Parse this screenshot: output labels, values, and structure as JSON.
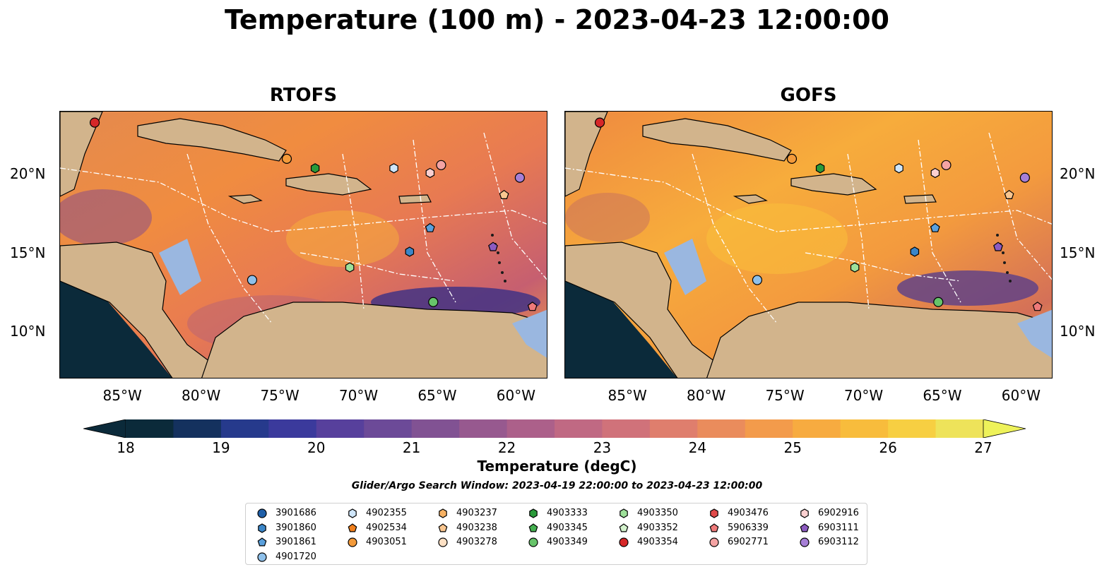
{
  "figure": {
    "title": "Temperature (100 m) - 2023-04-23 12:00:00"
  },
  "panels": [
    {
      "title": "RTOFS"
    },
    {
      "title": "GOFS"
    }
  ],
  "axes": {
    "x_ticks": [
      "85°W",
      "80°W",
      "75°W",
      "70°W",
      "65°W",
      "60°W"
    ],
    "y_ticks": [
      "20°N",
      "15°N",
      "10°N"
    ],
    "lon_range": [
      -89,
      -58
    ],
    "lat_range": [
      7,
      24
    ]
  },
  "colorbar": {
    "label": "Temperature (degC)",
    "ticks": [
      "18",
      "19",
      "20",
      "21",
      "22",
      "23",
      "24",
      "25",
      "26",
      "27"
    ],
    "range": [
      18,
      27
    ],
    "colormap": "thermal",
    "extend": "both"
  },
  "search_window": "Glider/Argo Search Window: 2023-04-19 22:00:00 to 2023-04-23 12:00:00",
  "colors": {
    "land": "#d2b48c",
    "shallow_water": "#9ab7e0",
    "deep_outside": "#0b2a3a",
    "eez_lines": "#ffffff",
    "coastline": "#000000"
  },
  "floats": [
    {
      "id": "3901686",
      "marker": "circle",
      "color": "#1f5fa8",
      "lon": null,
      "lat": null
    },
    {
      "id": "3901860",
      "marker": "hexagon",
      "color": "#3b86c8",
      "lon": -66.8,
      "lat": 15.1
    },
    {
      "id": "3901861",
      "marker": "pentagon",
      "color": "#5aa0dc",
      "lon": -65.5,
      "lat": 16.6
    },
    {
      "id": "4901720",
      "marker": "circle",
      "color": "#8ec0ea",
      "lon": -76.8,
      "lat": 13.3
    },
    {
      "id": "4902355",
      "marker": "hexagon",
      "color": "#cfe6fa",
      "lon": -67.8,
      "lat": 20.4
    },
    {
      "id": "4902534",
      "marker": "pentagon",
      "color": "#f07f1c",
      "lon": null,
      "lat": null
    },
    {
      "id": "4903051",
      "marker": "circle",
      "color": "#f39a3a",
      "lon": -74.6,
      "lat": 21.0
    },
    {
      "id": "4903237",
      "marker": "hexagon",
      "color": "#f7b264",
      "lon": null,
      "lat": null
    },
    {
      "id": "4903238",
      "marker": "pentagon",
      "color": "#f9c690",
      "lon": -60.8,
      "lat": 18.7
    },
    {
      "id": "4903278",
      "marker": "circle",
      "color": "#fde0c4",
      "lon": null,
      "lat": null
    },
    {
      "id": "4903333",
      "marker": "hexagon",
      "color": "#2a9a3a",
      "lon": -72.8,
      "lat": 20.4
    },
    {
      "id": "4903345",
      "marker": "pentagon",
      "color": "#45b050",
      "lon": null,
      "lat": null
    },
    {
      "id": "4903349",
      "marker": "circle",
      "color": "#67c46a",
      "lon": -65.3,
      "lat": 11.9
    },
    {
      "id": "4903350",
      "marker": "hexagon",
      "color": "#9ee09a",
      "lon": -70.6,
      "lat": 14.1
    },
    {
      "id": "4903352",
      "marker": "pentagon",
      "color": "#d3f2cc",
      "lon": null,
      "lat": null
    },
    {
      "id": "4903354",
      "marker": "circle",
      "color": "#d62728",
      "lon": -86.8,
      "lat": 23.3
    },
    {
      "id": "4903476",
      "marker": "hexagon",
      "color": "#e04a4a",
      "lon": null,
      "lat": null
    },
    {
      "id": "5906339",
      "marker": "pentagon",
      "color": "#ef7a7a",
      "lon": -59.0,
      "lat": 11.6
    },
    {
      "id": "6902771",
      "marker": "circle",
      "color": "#f4a3a3",
      "lon": -64.8,
      "lat": 20.6
    },
    {
      "id": "6902916",
      "marker": "hexagon",
      "color": "#fbd0d0",
      "lon": -65.5,
      "lat": 20.1
    },
    {
      "id": "6903111",
      "marker": "pentagon",
      "color": "#8c5bc0",
      "lon": -61.5,
      "lat": 15.4
    },
    {
      "id": "6903112",
      "marker": "circle",
      "color": "#a67fd6",
      "lon": -59.8,
      "lat": 19.8
    }
  ]
}
